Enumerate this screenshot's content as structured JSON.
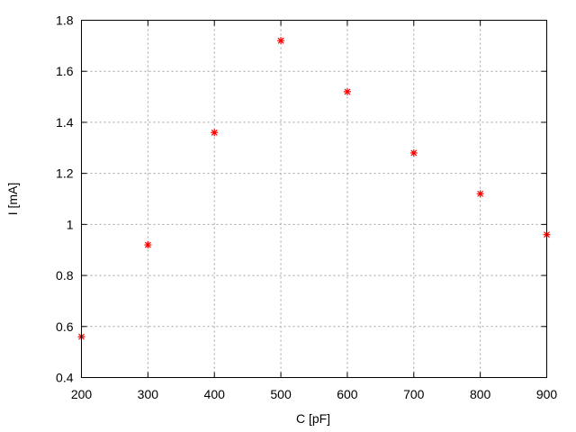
{
  "chart_data": {
    "type": "scatter",
    "title": "",
    "xlabel": "C [pF]",
    "ylabel": "I [mA]",
    "xlim": [
      200,
      900
    ],
    "ylim": [
      0.4,
      1.8
    ],
    "xticks": [
      200,
      300,
      400,
      500,
      600,
      700,
      800,
      900
    ],
    "yticks": [
      0.4,
      0.6,
      0.8,
      1,
      1.2,
      1.4,
      1.6,
      1.8
    ],
    "xtick_labels": [
      "200",
      "300",
      "400",
      "500",
      "600",
      "700",
      "800",
      "900"
    ],
    "ytick_labels": [
      "0.4",
      "0.6",
      "0.8",
      "1",
      "1.2",
      "1.4",
      "1.6",
      "1.8"
    ],
    "grid": true,
    "marker": "asterisk",
    "color": "#ff0000",
    "x": [
      200,
      300,
      400,
      500,
      600,
      700,
      800,
      900
    ],
    "y": [
      0.56,
      0.92,
      1.36,
      1.72,
      1.52,
      1.28,
      1.12,
      0.96
    ]
  }
}
